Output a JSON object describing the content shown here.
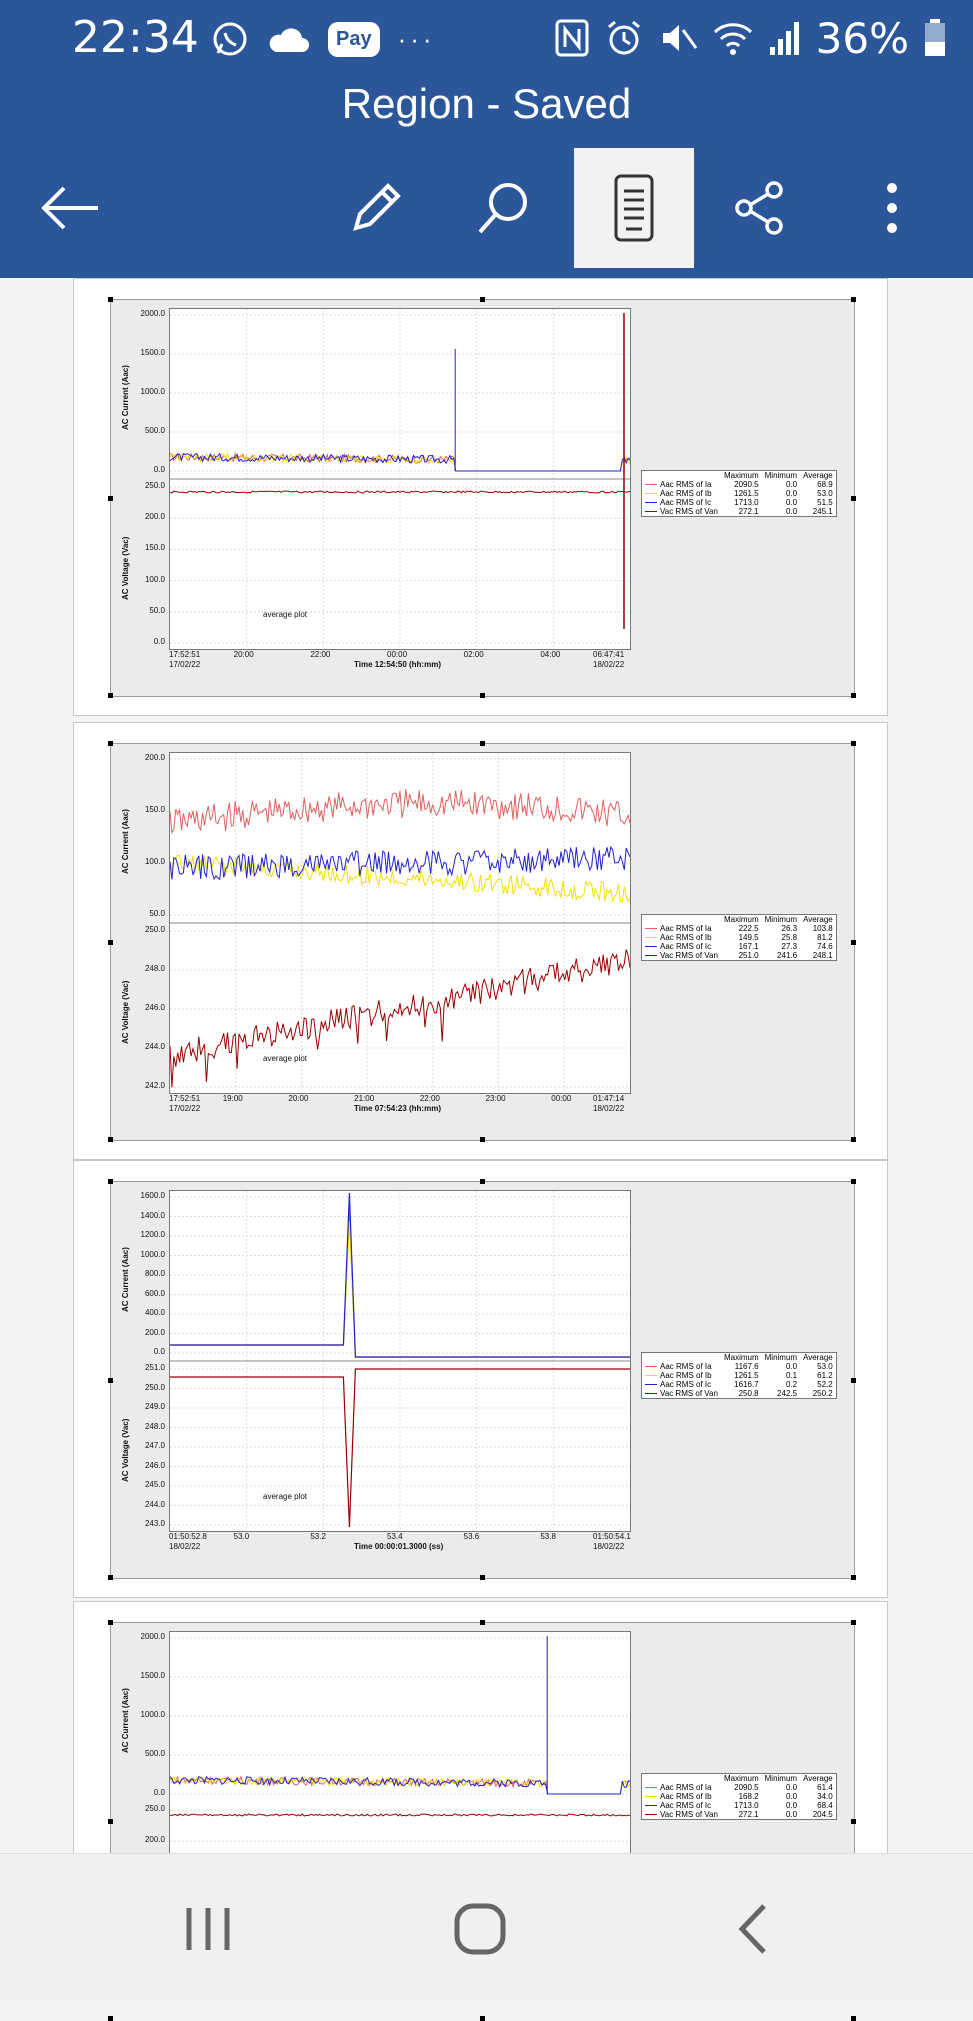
{
  "status": {
    "time": "22:34",
    "pay_label": "Pay",
    "overflow": "···",
    "battery": "36%",
    "icons": [
      "whatsapp-icon",
      "cloud-icon",
      "nfc-icon",
      "alarm-icon",
      "mute-icon",
      "wifi-icon",
      "signal-icon",
      "battery-icon"
    ]
  },
  "header": {
    "title": "Region - Saved",
    "toolbar": [
      "back-arrow-icon",
      "edit-pencil-icon",
      "search-icon",
      "mobile-view-icon",
      "share-icon",
      "more-vert-icon"
    ]
  },
  "nav": [
    "recent-apps-icon",
    "home-icon",
    "back-icon"
  ],
  "colors": {
    "ia": "#e06060",
    "ib": "#f3e000",
    "ic": "#2222cc",
    "van": "#990000",
    "header": "#2b579a"
  },
  "legend_headers": [
    "Maximum",
    "Minimum",
    "Average"
  ],
  "legend_names": [
    "Aac RMS of Ia",
    "Aac RMS of Ib",
    "Aac RMS of Ic",
    "Vac RMS of Van"
  ],
  "charts": [
    {
      "current_axis_title": "AC Current (Aac)",
      "voltage_axis_title": "AC Voltage (Vac)",
      "current_ticks": [
        "2000.0",
        "1500.0",
        "1000.0",
        "500.0",
        "0.0"
      ],
      "voltage_ticks": [
        "250.0",
        "200.0",
        "150.0",
        "100.0",
        "50.0",
        "0.0"
      ],
      "x_ticks": [
        "17:52:51",
        "20:00",
        "22:00",
        "00:00",
        "02:00",
        "04:00",
        "06:47:41"
      ],
      "x_start_date": "17/02/22",
      "x_end_date": "18/02/22",
      "x_title": "Time 12:54:50 (hh:mm)",
      "annotation": "average plot",
      "legend_rows": [
        [
          "2090.5",
          "0.0",
          "68.9"
        ],
        [
          "1261.5",
          "0.0",
          "53.0"
        ],
        [
          "1713.0",
          "0.0",
          "51.5"
        ],
        [
          "272.1",
          "0.0",
          "245.1"
        ]
      ]
    },
    {
      "current_axis_title": "AC Current (Aac)",
      "voltage_axis_title": "AC Voltage (Vac)",
      "current_ticks": [
        "200.0",
        "150.0",
        "100.0",
        "50.0"
      ],
      "voltage_ticks": [
        "250.0",
        "248.0",
        "246.0",
        "244.0",
        "242.0"
      ],
      "x_ticks": [
        "17:52:51",
        "19:00",
        "20:00",
        "21:00",
        "22:00",
        "23:00",
        "00:00",
        "01:47:14"
      ],
      "x_start_date": "17/02/22",
      "x_end_date": "18/02/22",
      "x_title": "Time 07:54:23 (hh:mm)",
      "annotation": "average plot",
      "legend_rows": [
        [
          "222.5",
          "26.3",
          "103.8"
        ],
        [
          "149.5",
          "25.8",
          "81.2"
        ],
        [
          "167.1",
          "27.3",
          "74.6"
        ],
        [
          "251.0",
          "241.6",
          "248.1"
        ]
      ]
    },
    {
      "current_axis_title": "AC Current (Aac)",
      "voltage_axis_title": "AC Voltage (Vac)",
      "current_ticks": [
        "1600.0",
        "1400.0",
        "1200.0",
        "1000.0",
        "800.0",
        "600.0",
        "400.0",
        "200.0",
        "0.0"
      ],
      "voltage_ticks": [
        "251.0",
        "250.0",
        "249.0",
        "248.0",
        "247.0",
        "246.0",
        "245.0",
        "244.0",
        "243.0"
      ],
      "x_ticks": [
        "01:50:52.8",
        "53.0",
        "53.2",
        "53.4",
        "53.6",
        "53.8",
        "01:50:54.1"
      ],
      "x_start_date": "18/02/22",
      "x_end_date": "18/02/22",
      "x_title": "Time 00:00:01.3000 (ss)",
      "annotation": "average plot",
      "legend_rows": [
        [
          "1167.6",
          "0.0",
          "53.0"
        ],
        [
          "1261.5",
          "0.1",
          "61.2"
        ],
        [
          "1616.7",
          "0.2",
          "52.2"
        ],
        [
          "250.8",
          "242.5",
          "250.2"
        ]
      ]
    },
    {
      "current_axis_title": "AC Current (Aac)",
      "voltage_axis_title": "AC Voltage (Vac)",
      "current_ticks": [
        "2000.0",
        "1500.0",
        "1000.0",
        "500.0",
        "0.0"
      ],
      "voltage_ticks": [
        "250.0",
        "200.0"
      ],
      "x_ticks": [],
      "x_start_date": "",
      "x_end_date": "",
      "x_title": "",
      "annotation": "",
      "legend_rows": [
        [
          "2090.5",
          "0.0",
          "61.4"
        ],
        [
          "168.2",
          "0.0",
          "34.0"
        ],
        [
          "1713.0",
          "0.0",
          "68.4"
        ],
        [
          "272.1",
          "0.0",
          "204.5"
        ]
      ]
    }
  ]
}
